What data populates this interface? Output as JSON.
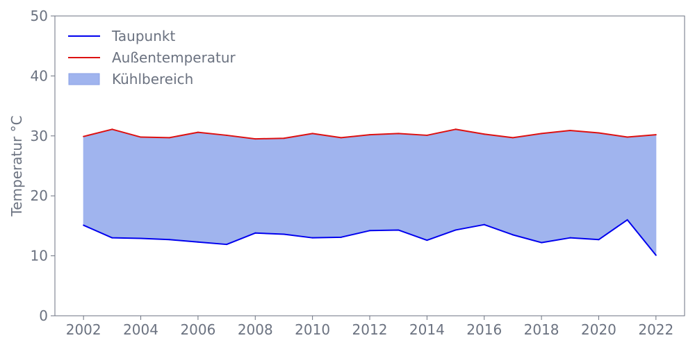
{
  "chart_data": {
    "type": "area",
    "title": "",
    "xlabel": "",
    "ylabel": "Temperatur °C",
    "xlim": [
      2001,
      2023
    ],
    "ylim": [
      0,
      50
    ],
    "xticks": [
      2002,
      2004,
      2006,
      2008,
      2010,
      2012,
      2014,
      2016,
      2018,
      2020,
      2022
    ],
    "yticks": [
      0,
      10,
      20,
      30,
      40,
      50
    ],
    "grid": false,
    "legend_position": "top-left",
    "x": [
      2002,
      2003,
      2004,
      2005,
      2006,
      2007,
      2008,
      2009,
      2010,
      2011,
      2012,
      2013,
      2014,
      2015,
      2016,
      2017,
      2018,
      2019,
      2020,
      2021,
      2022
    ],
    "series": [
      {
        "name": "Taupunkt",
        "color": "#0000ee",
        "values": [
          15.1,
          13.0,
          12.9,
          12.7,
          12.3,
          11.9,
          13.8,
          13.6,
          13.0,
          13.1,
          14.2,
          14.3,
          12.6,
          14.3,
          15.2,
          13.5,
          12.2,
          13.0,
          12.7,
          16.0,
          10.1
        ]
      },
      {
        "name": "Außentemperatur",
        "color": "#dd1111",
        "values": [
          29.9,
          31.1,
          29.8,
          29.7,
          30.6,
          30.1,
          29.5,
          29.6,
          30.4,
          29.7,
          30.2,
          30.4,
          30.1,
          31.1,
          30.3,
          29.7,
          30.4,
          30.9,
          30.5,
          29.8,
          30.2
        ]
      }
    ],
    "fill": {
      "name": "Kühlbereich",
      "color": "#a0b4ee",
      "between": [
        "Taupunkt",
        "Außentemperatur"
      ]
    }
  }
}
